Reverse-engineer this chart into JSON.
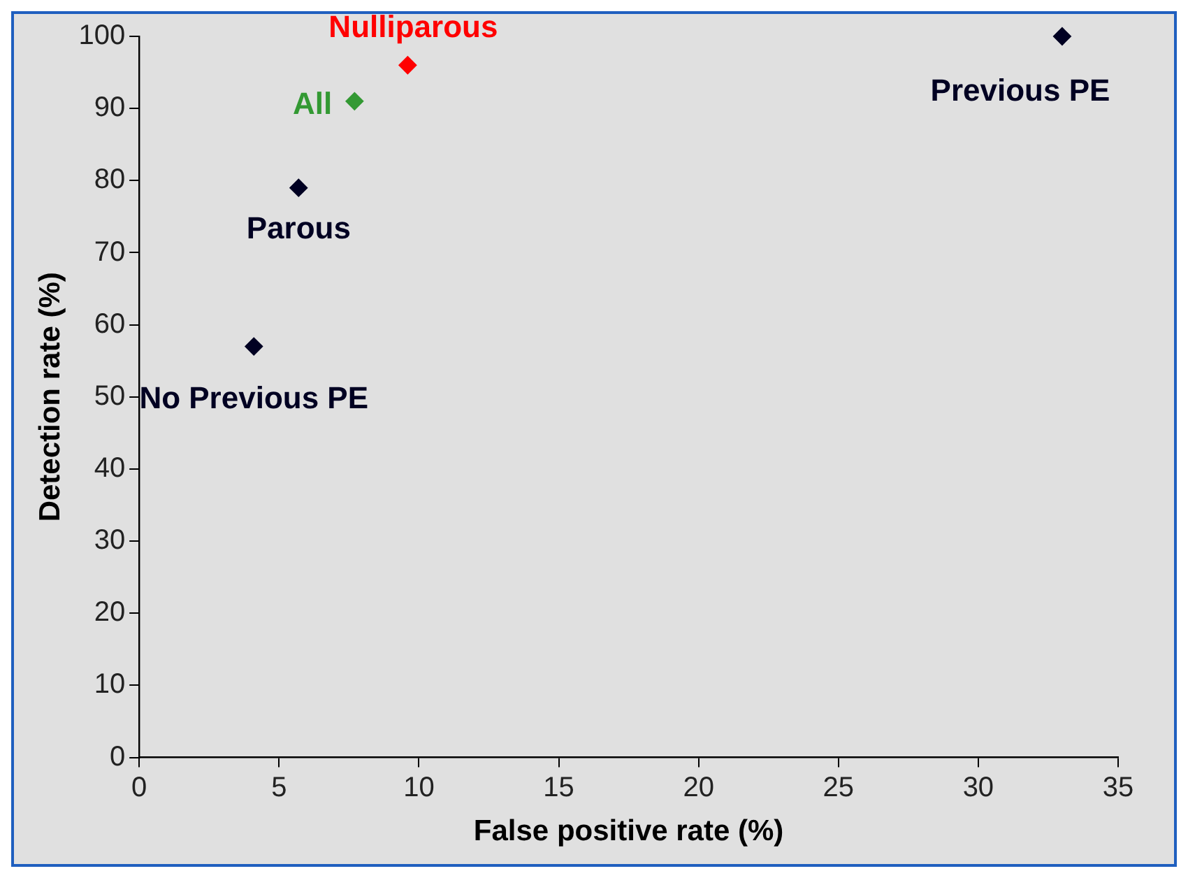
{
  "chart_data": {
    "type": "scatter",
    "xlabel": "False positive rate (%)",
    "ylabel": "Detection rate (%)",
    "xlim": [
      0,
      35
    ],
    "xticks": [
      0,
      5,
      10,
      15,
      20,
      25,
      30,
      35
    ],
    "ylim": [
      0,
      100
    ],
    "yticks": [
      0,
      10,
      20,
      30,
      40,
      50,
      60,
      70,
      80,
      90,
      100
    ],
    "grid": false,
    "legend": false,
    "marker": "diamond",
    "series": [
      {
        "name": "Nulliparous",
        "color": "#ff0000",
        "x": [
          9.6
        ],
        "values": [
          96
        ]
      },
      {
        "name": "All",
        "color": "#339933",
        "x": [
          7.7
        ],
        "values": [
          91
        ]
      },
      {
        "name": "Parous",
        "color": "#000022",
        "x": [
          5.7
        ],
        "values": [
          79
        ]
      },
      {
        "name": "No Previous PE",
        "color": "#000022",
        "x": [
          4.1
        ],
        "values": [
          57
        ]
      },
      {
        "name": "Previous PE",
        "color": "#000022",
        "x": [
          33.0
        ],
        "values": [
          100
        ]
      }
    ]
  }
}
